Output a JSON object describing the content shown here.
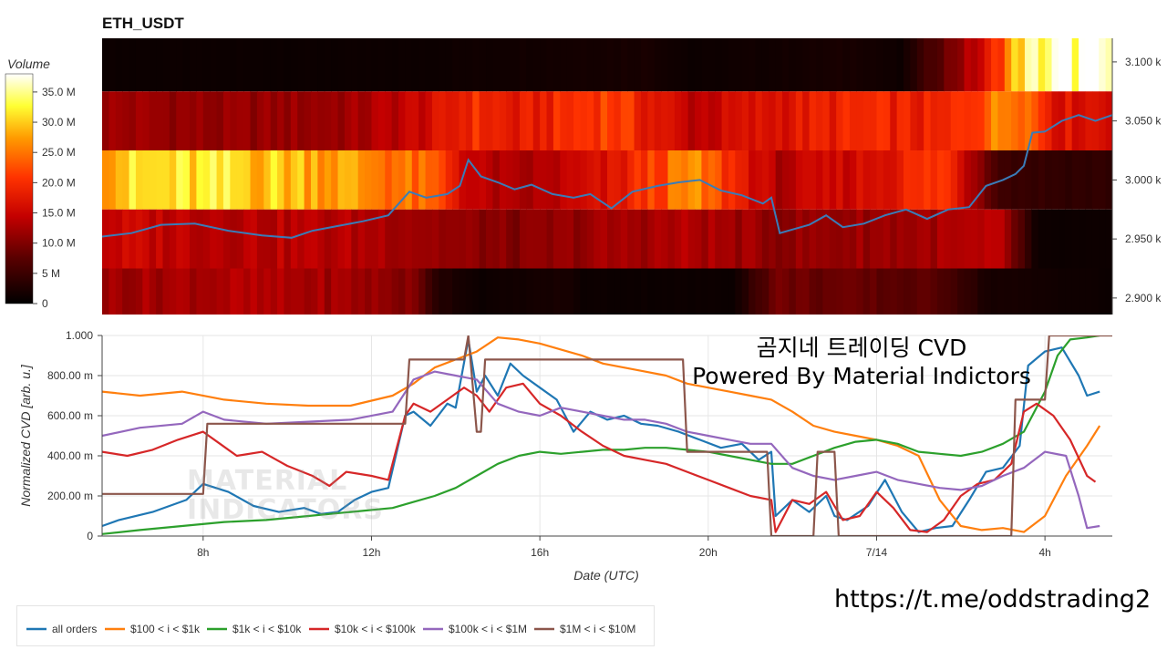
{
  "window": {
    "title": "ETH_USDT"
  },
  "overlay": {
    "title_line1": "곰지네 트레이딩 CVD",
    "title_line2": "Powered By Material Indictors",
    "url": "https://t.me/oddstrading2",
    "watermark_line1": "MATERIAL",
    "watermark_line2": "INDICATORS"
  },
  "colors": {
    "all_orders": "#1f77b4",
    "100_1k": "#ff7f0e",
    "1k_10k": "#2ca02c",
    "10k_100k": "#d62728",
    "100k_1M": "#9467bd",
    "1M_10M": "#8c564b",
    "price_line": "#3a7cb8"
  },
  "chart_data": [
    {
      "type": "heatmap",
      "title": "ETH_USDT",
      "colorbar": {
        "label": "Volume",
        "ticks": [
          "0",
          "5 M",
          "10.0 M",
          "15.0 M",
          "20.0 M",
          "25.0 M",
          "30.0 M",
          "35.0 M"
        ],
        "tick_values": [
          0,
          5,
          10,
          15,
          20,
          25,
          30,
          35
        ],
        "range_millions": [
          0,
          38
        ]
      },
      "y_ticks": [
        "2.900 k",
        "2.950 k",
        "3.000 k",
        "3.050 k",
        "3.100 k"
      ],
      "y_tick_values": [
        2900,
        2950,
        3000,
        3050,
        3100
      ],
      "ylim": [
        2886,
        3120
      ],
      "xlim_hours": [
        5.6,
        29.6
      ],
      "price_bands": [
        3100,
        3050,
        3000,
        2950,
        2900
      ],
      "band_levels": [
        [
          [
            5.6,
            1
          ],
          [
            12.6,
            1
          ],
          [
            18.6,
            2
          ],
          [
            19.6,
            1
          ],
          [
            23.6,
            2
          ],
          [
            24.6,
            1
          ],
          [
            26.6,
            16
          ],
          [
            27.5,
            33
          ],
          [
            28.5,
            36
          ]
        ],
        [
          [
            5.6,
            12
          ],
          [
            8.6,
            11
          ],
          [
            11.6,
            12
          ],
          [
            13.6,
            16
          ],
          [
            14.4,
            20
          ],
          [
            15.5,
            17
          ],
          [
            17.6,
            22
          ],
          [
            19.6,
            14
          ],
          [
            21.6,
            17
          ],
          [
            23.6,
            19
          ],
          [
            25.6,
            18
          ],
          [
            27.3,
            28
          ],
          [
            28.3,
            17
          ]
        ],
        [
          [
            5.6,
            30
          ],
          [
            8.6,
            31
          ],
          [
            10.6,
            29
          ],
          [
            12.6,
            25
          ],
          [
            13.6,
            22
          ],
          [
            14.4,
            14
          ],
          [
            15.5,
            12
          ],
          [
            17.6,
            16
          ],
          [
            19.6,
            26
          ],
          [
            21.6,
            13
          ],
          [
            23.6,
            16
          ],
          [
            25.6,
            21
          ],
          [
            27.0,
            5
          ],
          [
            28.5,
            4
          ]
        ],
        [
          [
            5.6,
            15
          ],
          [
            8.6,
            14
          ],
          [
            12.6,
            13
          ],
          [
            14.0,
            11
          ],
          [
            15.5,
            10
          ],
          [
            17.6,
            12
          ],
          [
            19.6,
            13
          ],
          [
            21.6,
            11
          ],
          [
            24.6,
            12
          ],
          [
            27.0,
            13
          ],
          [
            27.8,
            1
          ],
          [
            29.6,
            1
          ]
        ],
        [
          [
            5.6,
            12
          ],
          [
            8.6,
            13
          ],
          [
            11.6,
            12
          ],
          [
            13.0,
            10
          ],
          [
            13.6,
            3
          ],
          [
            14.6,
            1
          ],
          [
            16.6,
            2
          ],
          [
            17.0,
            1
          ],
          [
            20.6,
            1
          ],
          [
            21.6,
            9
          ],
          [
            25.6,
            7
          ],
          [
            26.6,
            2
          ],
          [
            29.6,
            1
          ]
        ]
      ],
      "price_series": {
        "x": [
          5.6,
          6.3,
          7.0,
          7.8,
          8.6,
          9.4,
          10.1,
          10.6,
          11.2,
          11.8,
          12.4,
          12.9,
          13.3,
          13.8,
          14.1,
          14.3,
          14.6,
          15.0,
          15.4,
          15.8,
          16.3,
          16.8,
          17.2,
          17.7,
          18.2,
          18.8,
          19.3,
          19.8,
          20.3,
          20.8,
          21.3,
          21.5,
          21.7,
          22.0,
          22.4,
          22.8,
          23.2,
          23.7,
          24.2,
          24.7,
          25.2,
          25.7,
          26.2,
          26.6,
          27.0,
          27.3,
          27.5,
          27.7,
          28.0,
          28.4,
          28.8,
          29.2,
          29.6
        ],
        "y": [
          2952,
          2955,
          2962,
          2963,
          2957,
          2953,
          2951,
          2957,
          2961,
          2965,
          2970,
          2990,
          2985,
          2988,
          2995,
          3017,
          3003,
          2998,
          2992,
          2996,
          2988,
          2985,
          2988,
          2976,
          2990,
          2995,
          2998,
          3000,
          2991,
          2987,
          2980,
          2985,
          2955,
          2958,
          2962,
          2970,
          2960,
          2963,
          2970,
          2975,
          2967,
          2975,
          2977,
          2995,
          3000,
          3005,
          3012,
          3040,
          3041,
          3050,
          3055,
          3050,
          3055
        ]
      }
    },
    {
      "type": "line",
      "xlabel": "Date (UTC)",
      "ylabel": "Normalized CVD [arb. u.]",
      "x_ticks": [
        "8h",
        "12h",
        "16h",
        "20h",
        "7/14",
        "4h"
      ],
      "x_tick_values": [
        8,
        12,
        16,
        20,
        24,
        28
      ],
      "xlim": [
        5.6,
        29.6
      ],
      "y_ticks": [
        "0",
        "200.00 m",
        "400.00 m",
        "600.00 m",
        "800.00 m",
        "1.000"
      ],
      "y_tick_values": [
        0,
        0.2,
        0.4,
        0.6,
        0.8,
        1.0
      ],
      "ylim": [
        0,
        1.0
      ],
      "grid": true,
      "legend_position": "bottom",
      "series": [
        {
          "name": "all orders",
          "color_key": "all_orders",
          "x": [
            5.6,
            6.0,
            6.8,
            7.6,
            8.0,
            8.3,
            8.6,
            9.2,
            9.8,
            10.4,
            10.8,
            11.2,
            11.6,
            12.0,
            12.4,
            12.8,
            13.0,
            13.4,
            13.8,
            14.0,
            14.3,
            14.5,
            14.7,
            15.0,
            15.3,
            15.6,
            16.0,
            16.4,
            16.8,
            17.2,
            17.6,
            18.0,
            18.4,
            18.8,
            19.3,
            19.8,
            20.3,
            20.8,
            21.2,
            21.5,
            21.6,
            22.0,
            22.4,
            22.8,
            23.0,
            23.3,
            23.8,
            24.2,
            24.6,
            25.0,
            25.4,
            25.8,
            26.2,
            26.6,
            27.0,
            27.4,
            27.6,
            28.0,
            28.4,
            28.8,
            29.0,
            29.3
          ],
          "y": [
            0.05,
            0.08,
            0.12,
            0.18,
            0.26,
            0.24,
            0.22,
            0.15,
            0.12,
            0.14,
            0.11,
            0.12,
            0.18,
            0.22,
            0.24,
            0.6,
            0.62,
            0.55,
            0.66,
            0.64,
            0.98,
            0.72,
            0.8,
            0.7,
            0.86,
            0.8,
            0.74,
            0.68,
            0.52,
            0.62,
            0.58,
            0.6,
            0.56,
            0.55,
            0.52,
            0.48,
            0.44,
            0.46,
            0.38,
            0.42,
            0.1,
            0.18,
            0.12,
            0.2,
            0.1,
            0.08,
            0.15,
            0.28,
            0.12,
            0.02,
            0.04,
            0.05,
            0.18,
            0.32,
            0.34,
            0.45,
            0.85,
            0.92,
            0.94,
            0.8,
            0.7,
            0.72
          ]
        },
        {
          "name": "$100 < i < $1k",
          "color_key": "100_1k",
          "x": [
            5.6,
            6.5,
            7.5,
            8.5,
            9.5,
            10.5,
            11.5,
            12.5,
            13.0,
            13.5,
            14.0,
            14.5,
            15.0,
            15.5,
            16.0,
            16.5,
            17.0,
            17.5,
            18.0,
            18.5,
            19.0,
            19.5,
            20.0,
            20.5,
            21.0,
            21.5,
            22.0,
            22.5,
            23.0,
            23.5,
            24.0,
            24.5,
            25.0,
            25.5,
            26.0,
            26.5,
            27.0,
            27.5,
            28.0,
            28.5,
            29.0,
            29.3
          ],
          "y": [
            0.72,
            0.7,
            0.72,
            0.68,
            0.66,
            0.65,
            0.65,
            0.7,
            0.76,
            0.84,
            0.88,
            0.92,
            0.99,
            0.98,
            0.96,
            0.93,
            0.9,
            0.86,
            0.84,
            0.82,
            0.8,
            0.76,
            0.74,
            0.72,
            0.7,
            0.68,
            0.62,
            0.55,
            0.52,
            0.5,
            0.48,
            0.45,
            0.4,
            0.18,
            0.05,
            0.03,
            0.04,
            0.02,
            0.1,
            0.3,
            0.45,
            0.55
          ]
        },
        {
          "name": "$1k < i < $10k",
          "color_key": "1k_10k",
          "x": [
            5.6,
            6.5,
            7.5,
            8.5,
            9.5,
            10.5,
            11.5,
            12.5,
            13.0,
            13.5,
            14.0,
            14.5,
            15.0,
            15.5,
            16.0,
            16.5,
            17.0,
            17.5,
            18.0,
            18.5,
            19.0,
            19.5,
            20.0,
            20.5,
            21.0,
            21.5,
            22.0,
            22.5,
            23.0,
            23.5,
            24.0,
            24.5,
            25.0,
            25.5,
            26.0,
            26.5,
            27.0,
            27.5,
            28.0,
            28.3,
            28.6,
            29.0,
            29.3
          ],
          "y": [
            0.01,
            0.03,
            0.05,
            0.07,
            0.08,
            0.1,
            0.12,
            0.14,
            0.17,
            0.2,
            0.24,
            0.3,
            0.36,
            0.4,
            0.42,
            0.41,
            0.42,
            0.43,
            0.43,
            0.44,
            0.44,
            0.43,
            0.42,
            0.4,
            0.38,
            0.36,
            0.36,
            0.4,
            0.44,
            0.47,
            0.48,
            0.46,
            0.42,
            0.41,
            0.4,
            0.42,
            0.46,
            0.52,
            0.72,
            0.9,
            0.98,
            0.99,
            1.0
          ]
        },
        {
          "name": "$10k < i < $100k",
          "color_key": "10k_100k",
          "x": [
            5.6,
            6.2,
            6.8,
            7.4,
            8.0,
            8.4,
            8.8,
            9.4,
            10.0,
            10.6,
            11.0,
            11.4,
            12.0,
            12.4,
            12.8,
            13.0,
            13.4,
            13.8,
            14.2,
            14.5,
            14.8,
            15.2,
            15.6,
            16.0,
            16.5,
            17.0,
            17.5,
            18.0,
            18.5,
            19.0,
            19.5,
            20.0,
            20.5,
            21.0,
            21.5,
            21.6,
            22.0,
            22.4,
            22.8,
            23.2,
            23.6,
            24.0,
            24.4,
            24.8,
            25.2,
            25.6,
            26.0,
            26.4,
            26.8,
            27.2,
            27.5,
            27.8,
            28.2,
            28.6,
            29.0,
            29.2
          ],
          "y": [
            0.42,
            0.4,
            0.43,
            0.48,
            0.52,
            0.46,
            0.4,
            0.42,
            0.35,
            0.3,
            0.25,
            0.32,
            0.3,
            0.28,
            0.6,
            0.66,
            0.62,
            0.68,
            0.74,
            0.7,
            0.62,
            0.74,
            0.76,
            0.66,
            0.6,
            0.52,
            0.45,
            0.4,
            0.38,
            0.36,
            0.32,
            0.28,
            0.24,
            0.2,
            0.18,
            0.02,
            0.18,
            0.16,
            0.22,
            0.08,
            0.1,
            0.22,
            0.14,
            0.03,
            0.02,
            0.08,
            0.2,
            0.26,
            0.28,
            0.36,
            0.62,
            0.66,
            0.6,
            0.48,
            0.3,
            0.27
          ]
        },
        {
          "name": "$100k < i < $1M",
          "color_key": "100k_1M",
          "x": [
            5.6,
            6.5,
            7.5,
            8.0,
            8.5,
            9.5,
            10.5,
            11.5,
            12.5,
            13.0,
            13.5,
            14.0,
            14.5,
            15.0,
            15.5,
            16.0,
            16.5,
            17.0,
            17.5,
            18.0,
            18.5,
            19.0,
            19.5,
            20.0,
            20.5,
            21.0,
            21.5,
            22.0,
            22.5,
            23.0,
            23.5,
            24.0,
            24.5,
            25.0,
            25.5,
            26.0,
            26.5,
            27.0,
            27.5,
            28.0,
            28.5,
            28.8,
            29.0,
            29.3
          ],
          "y": [
            0.5,
            0.54,
            0.56,
            0.62,
            0.58,
            0.56,
            0.57,
            0.58,
            0.62,
            0.78,
            0.82,
            0.8,
            0.78,
            0.66,
            0.62,
            0.6,
            0.64,
            0.62,
            0.6,
            0.58,
            0.58,
            0.56,
            0.52,
            0.5,
            0.48,
            0.46,
            0.46,
            0.34,
            0.3,
            0.28,
            0.3,
            0.32,
            0.28,
            0.26,
            0.24,
            0.23,
            0.25,
            0.3,
            0.34,
            0.42,
            0.4,
            0.2,
            0.04,
            0.05
          ]
        },
        {
          "name": "$1M < i < $10M",
          "color_key": "1M_10M",
          "x": [
            5.6,
            8.0,
            8.1,
            12.8,
            12.9,
            14.2,
            14.3,
            14.5,
            14.6,
            14.7,
            19.4,
            19.5,
            21.4,
            21.5,
            22.5,
            22.6,
            23.0,
            23.1,
            27.2,
            27.3,
            27.4,
            28.0,
            28.1,
            29.6
          ],
          "y": [
            0.21,
            0.21,
            0.56,
            0.56,
            0.88,
            0.88,
            1.0,
            0.52,
            0.52,
            0.88,
            0.88,
            0.42,
            0.42,
            0.0,
            0.0,
            0.42,
            0.42,
            0.0,
            0.0,
            0.68,
            0.68,
            0.68,
            1.0,
            1.0
          ]
        }
      ]
    }
  ]
}
